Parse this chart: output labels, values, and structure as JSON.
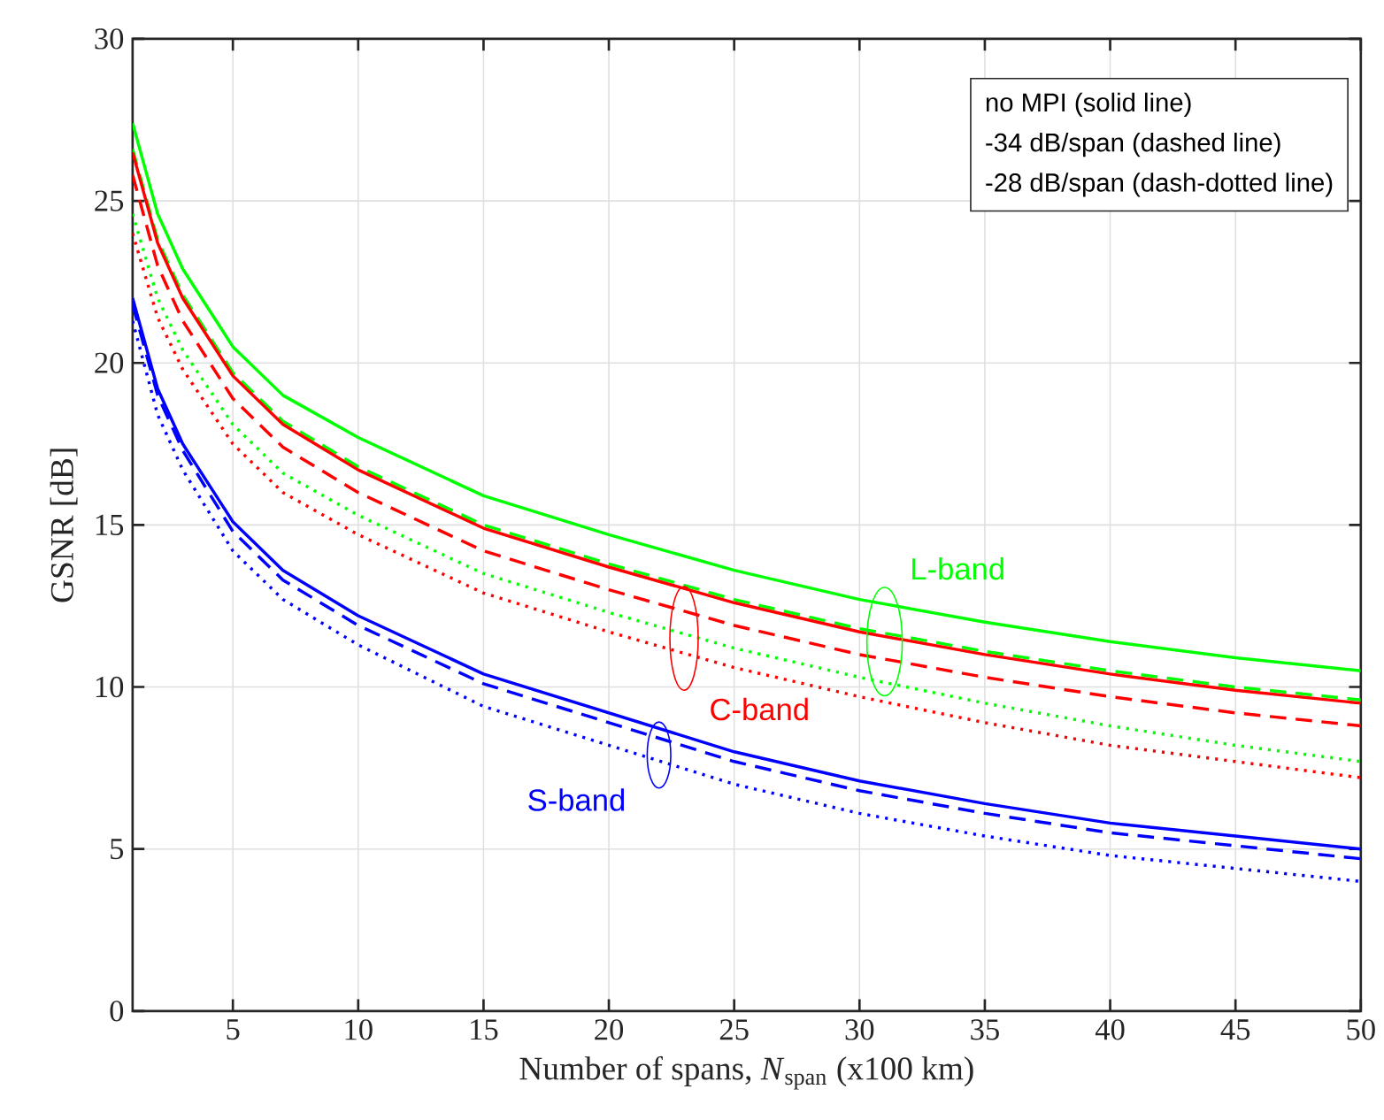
{
  "chart_data": {
    "type": "line",
    "xlabel": "Number of spans, *N*$_{span}$ (x100 km)",
    "ylabel": "GSNR [dB]",
    "x": [
      1,
      2,
      3,
      5,
      7,
      10,
      15,
      20,
      25,
      30,
      35,
      40,
      45,
      50
    ],
    "xlim": [
      1,
      50
    ],
    "xticks": [
      5,
      10,
      15,
      20,
      25,
      30,
      35,
      40,
      45,
      50
    ],
    "ylim": [
      0,
      30
    ],
    "yticks": [
      0,
      5,
      10,
      15,
      20,
      25,
      30
    ],
    "grid": true,
    "series": [
      {
        "color": "#00ff00",
        "line_style": "solid",
        "values": [
          27.4,
          24.6,
          22.9,
          20.5,
          19.0,
          17.7,
          15.9,
          14.7,
          13.6,
          12.7,
          12.0,
          11.4,
          10.9,
          10.5
        ]
      },
      {
        "color": "#00ff00",
        "line_style": "dashed",
        "values": [
          26.6,
          23.8,
          22.1,
          19.7,
          18.2,
          16.8,
          15.0,
          13.8,
          12.7,
          11.8,
          11.1,
          10.5,
          10.0,
          9.6
        ]
      },
      {
        "color": "#00ff00",
        "line_style": "dotted",
        "values": [
          24.6,
          22.0,
          20.4,
          18.1,
          16.6,
          15.3,
          13.5,
          12.3,
          11.2,
          10.3,
          9.5,
          8.8,
          8.2,
          7.7
        ]
      },
      {
        "color": "#ff0000",
        "line_style": "solid",
        "values": [
          26.5,
          23.7,
          22.0,
          19.6,
          18.1,
          16.7,
          14.9,
          13.7,
          12.6,
          11.7,
          11.0,
          10.4,
          9.9,
          9.5
        ]
      },
      {
        "color": "#ff0000",
        "line_style": "dashed",
        "values": [
          25.8,
          23.0,
          21.3,
          18.9,
          17.4,
          16.0,
          14.2,
          13.0,
          11.9,
          11.0,
          10.3,
          9.7,
          9.2,
          8.8
        ]
      },
      {
        "color": "#ff0000",
        "line_style": "dotted",
        "values": [
          24.0,
          21.4,
          19.8,
          17.5,
          16.0,
          14.7,
          12.9,
          11.7,
          10.6,
          9.7,
          8.9,
          8.2,
          7.7,
          7.2
        ]
      },
      {
        "color": "#0000ff",
        "line_style": "solid",
        "values": [
          22.0,
          19.2,
          17.5,
          15.1,
          13.6,
          12.2,
          10.4,
          9.2,
          8.0,
          7.1,
          6.4,
          5.8,
          5.4,
          5.0
        ]
      },
      {
        "color": "#0000ff",
        "line_style": "dashed",
        "values": [
          21.8,
          19.0,
          17.3,
          14.8,
          13.3,
          11.9,
          10.1,
          8.9,
          7.7,
          6.8,
          6.1,
          5.5,
          5.1,
          4.7
        ]
      },
      {
        "color": "#0000ff",
        "line_style": "dotted",
        "values": [
          21.3,
          18.4,
          16.7,
          14.2,
          12.7,
          11.3,
          9.4,
          8.2,
          7.0,
          6.1,
          5.4,
          4.8,
          4.4,
          4.0
        ]
      }
    ],
    "annotations": [
      "no MPI (solid line)",
      "-34 dB/span (dashed line)",
      "-28 dB/span (dash-dotted line)",
      {
        "text": "L-band",
        "x": 31,
        "y": 11.4
      },
      {
        "text": "C-band",
        "x": 23,
        "y": 11.5
      },
      {
        "text": "S-band",
        "x": 22,
        "y": 7.9
      }
    ]
  }
}
